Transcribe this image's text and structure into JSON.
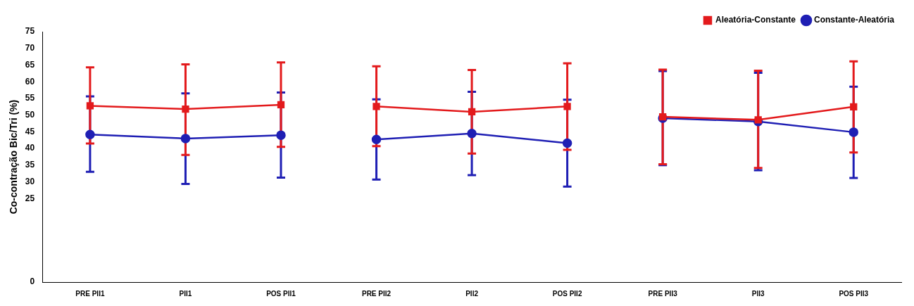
{
  "chart_data": {
    "type": "line",
    "ylabel": "Co-contração Bic/Tri (%)",
    "categories": [
      "PRE PII1",
      "PII1",
      "POS PII1",
      "PRE PII2",
      "PII2",
      "POS PII2",
      "PRE PII3",
      "PII3",
      "POS PII3"
    ],
    "ylim": [
      0,
      75
    ],
    "yticks": [
      0,
      25,
      30,
      35,
      40,
      45,
      50,
      55,
      60,
      65,
      70,
      75
    ],
    "grid": false,
    "legend": "top right",
    "series": [
      {
        "name": "Constante-Aleatória",
        "color": "#1f1fb4",
        "marker": "circle",
        "x": [
          "PRE PII1",
          "PII1",
          "POS PII1"
        ],
        "values": [
          44.2,
          43,
          44
        ],
        "errors": [
          [
            33,
            55.6
          ],
          [
            29.4,
            56.5
          ],
          [
            31.3,
            56.8
          ]
        ]
      },
      {
        "name": "Aleatória-Constante",
        "color": "#e31a1c",
        "marker": "square",
        "x": [
          "PRE PII1",
          "PII1",
          "POS PII1"
        ],
        "values": [
          52.8,
          51.8,
          53.1
        ],
        "errors": [
          [
            41.5,
            64.3
          ],
          [
            38.1,
            65.2
          ],
          [
            40.5,
            65.8
          ]
        ]
      },
      {
        "color": "#1f1fb4",
        "marker": "circle",
        "x": [
          "PRE PII2",
          "PII2",
          "POS PII2"
        ],
        "values": [
          42.7,
          44.5,
          41.6
        ],
        "errors": [
          [
            30.7,
            54.7
          ],
          [
            32,
            57
          ],
          [
            28.6,
            54.6
          ]
        ]
      },
      {
        "color": "#e31a1c",
        "marker": "square",
        "x": [
          "PRE PII2",
          "PII2",
          "POS PII2"
        ],
        "values": [
          52.6,
          51,
          52.6
        ],
        "errors": [
          [
            40.7,
            64.6
          ],
          [
            38.5,
            63.5
          ],
          [
            39.6,
            65.5
          ]
        ]
      },
      {
        "color": "#1f1fb4",
        "marker": "circle",
        "x": [
          "PRE PII3",
          "PII3",
          "POS PII3"
        ],
        "values": [
          49.1,
          48.1,
          44.9
        ],
        "errors": [
          [
            35,
            63.2
          ],
          [
            33.5,
            62.7
          ],
          [
            31.2,
            58.5
          ]
        ]
      },
      {
        "color": "#e31a1c",
        "marker": "square",
        "x": [
          "PRE PII3",
          "PII3",
          "POS PII3"
        ],
        "values": [
          49.5,
          48.6,
          52.5
        ],
        "errors": [
          [
            35.3,
            63.6
          ],
          [
            34.2,
            63.3
          ],
          [
            38.8,
            66.1
          ]
        ]
      }
    ]
  }
}
